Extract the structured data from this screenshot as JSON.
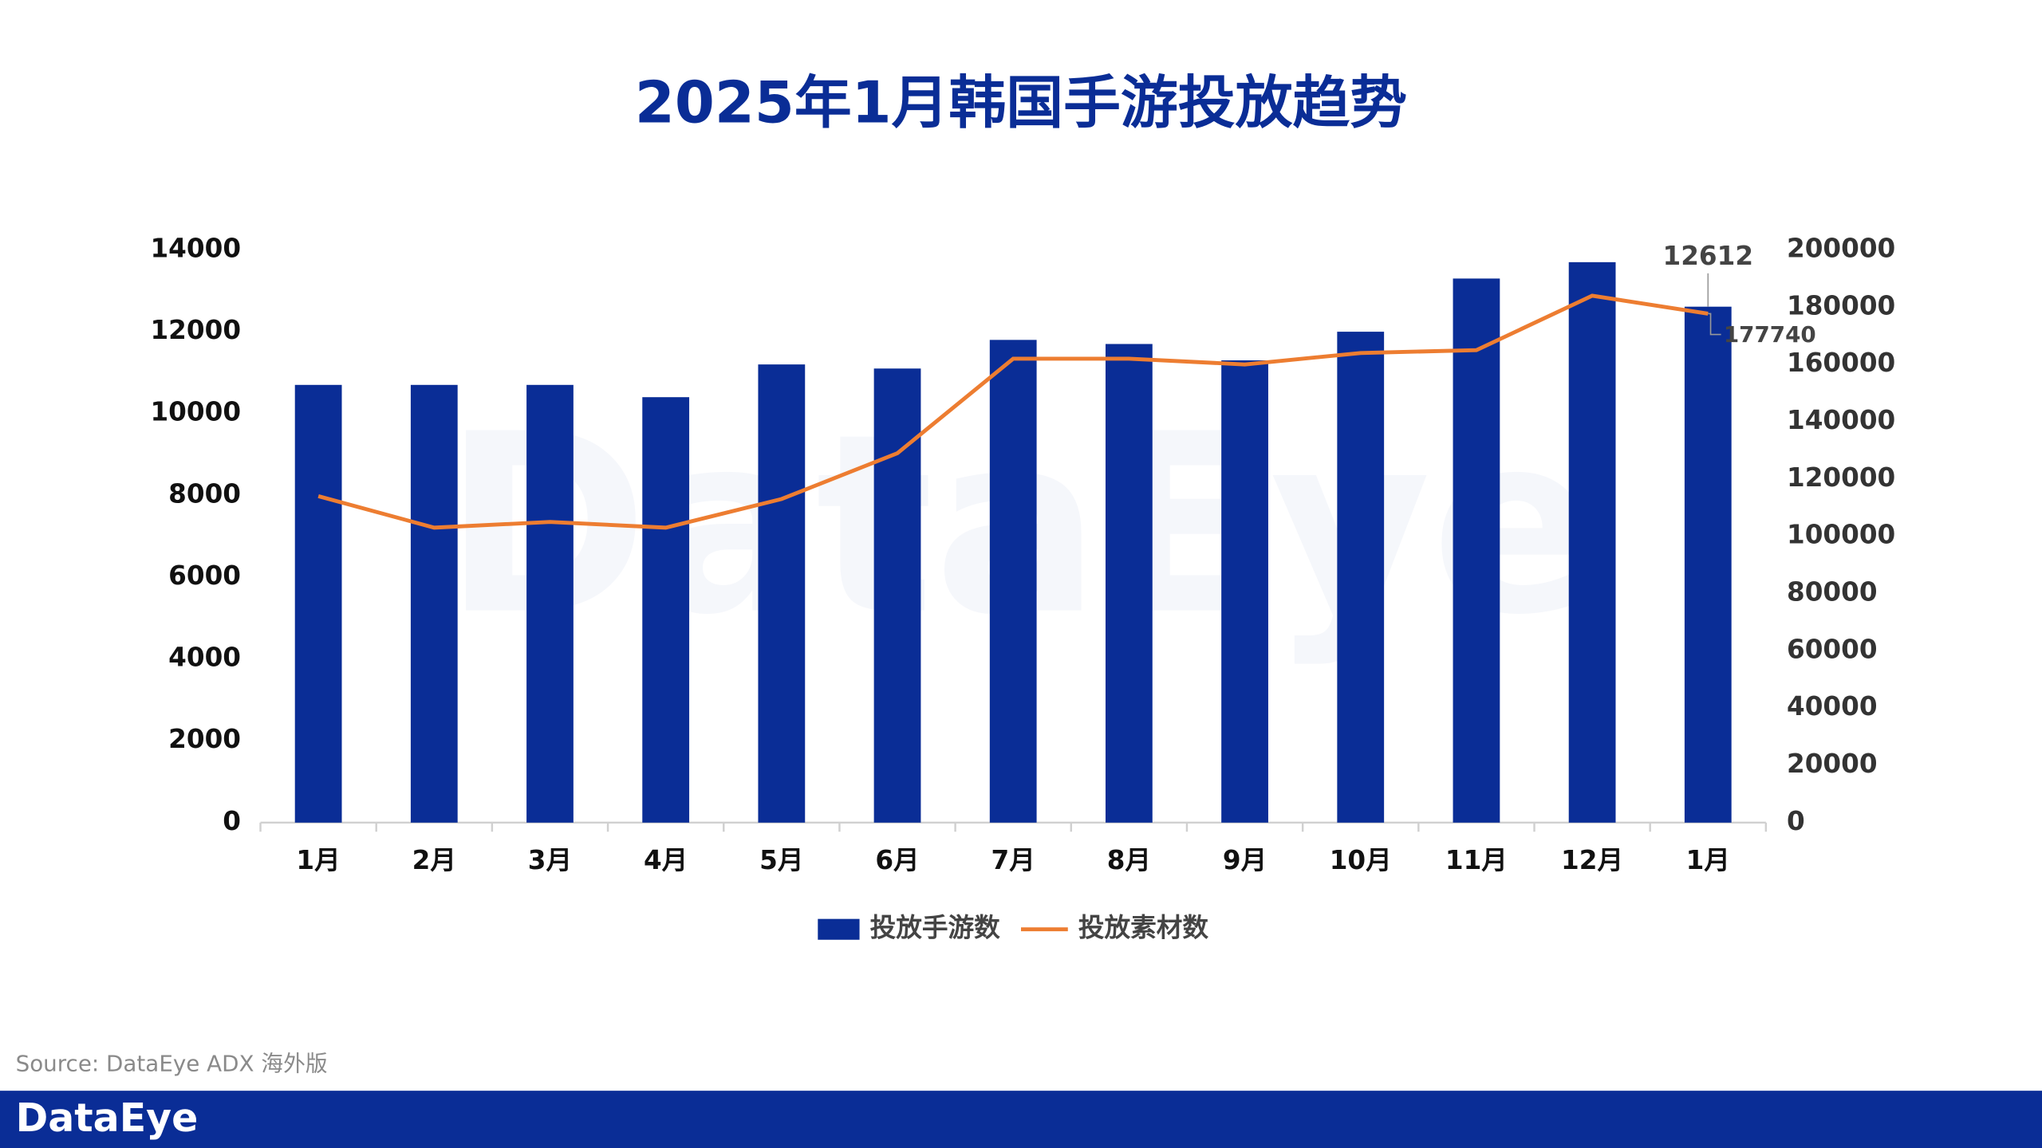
{
  "chart_data": {
    "type": "bar-line",
    "title": "2025年1月韩国手游投放趋势",
    "categories": [
      "1月",
      "2月",
      "3月",
      "4月",
      "5月",
      "6月",
      "7月",
      "8月",
      "9月",
      "10月",
      "11月",
      "12月",
      "1月"
    ],
    "series": [
      {
        "name": "投放手游数",
        "type": "bar",
        "color": "#0a2d96",
        "values": [
          10700,
          10700,
          10700,
          10400,
          11200,
          11100,
          11800,
          11700,
          11300,
          12000,
          13300,
          13700,
          12612
        ]
      },
      {
        "name": "投放素材数",
        "type": "line",
        "axis": "y2",
        "color": "#ed7d31",
        "values": [
          114000,
          103000,
          105000,
          103000,
          113000,
          129000,
          162000,
          162000,
          160000,
          164000,
          165000,
          184000,
          177740
        ]
      }
    ],
    "data_labels": "last",
    "ylim": [
      0,
      14000
    ],
    "yticks": [
      0,
      2000,
      4000,
      6000,
      8000,
      10000,
      12000,
      14000
    ],
    "y2lim": [
      0,
      200000
    ],
    "y2ticks": [
      0,
      20000,
      40000,
      60000,
      80000,
      100000,
      120000,
      140000,
      160000,
      180000,
      200000
    ],
    "legend": "bottom",
    "source": "Source: DataEye ADX 海外版",
    "watermark": "DataEye",
    "brand": "DataEye"
  }
}
